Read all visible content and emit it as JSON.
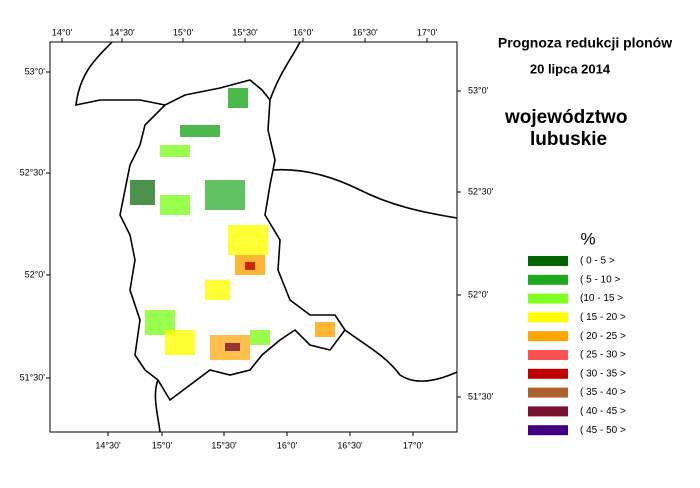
{
  "title": "Prognoza redukcji plonów",
  "date": "20 lipca 2014",
  "region": [
    "województwo",
    "lubuskie"
  ],
  "grid_labels": {
    "top": [
      "14°0'",
      "14°30'",
      "15°0'",
      "15°30'",
      "16°0'",
      "16°30'",
      "17°0'"
    ],
    "bottom": [
      "14°30'",
      "15°0'",
      "15°30'",
      "16°0'",
      "16°30'",
      "17°0'"
    ],
    "left": [
      "53°0'",
      "52°30'",
      "52°0'",
      "51°30'"
    ],
    "right": [
      "53°0'",
      "52°30'",
      "52°0'",
      "51°30'"
    ]
  },
  "legend": {
    "unit": "%",
    "items": [
      {
        "label": "( 0 - 5 >",
        "color": "#006400"
      },
      {
        "label": "( 5 - 10 >",
        "color": "#1ea81e"
      },
      {
        "label": "(10 - 15 >",
        "color": "#80ff20"
      },
      {
        "label": "( 15 - 20 >",
        "color": "#ffff00"
      },
      {
        "label": "( 20 - 25 >",
        "color": "#ffa500"
      },
      {
        "label": "( 25 - 30 >",
        "color": "#ff5050"
      },
      {
        "label": "( 30 - 35 >",
        "color": "#c00000"
      },
      {
        "label": "( 35 - 40 >",
        "color": "#b0602c"
      },
      {
        "label": "( 40 - 45 >",
        "color": "#7a1030"
      },
      {
        "label": "( 45 - 50 >",
        "color": "#400080"
      }
    ]
  }
}
